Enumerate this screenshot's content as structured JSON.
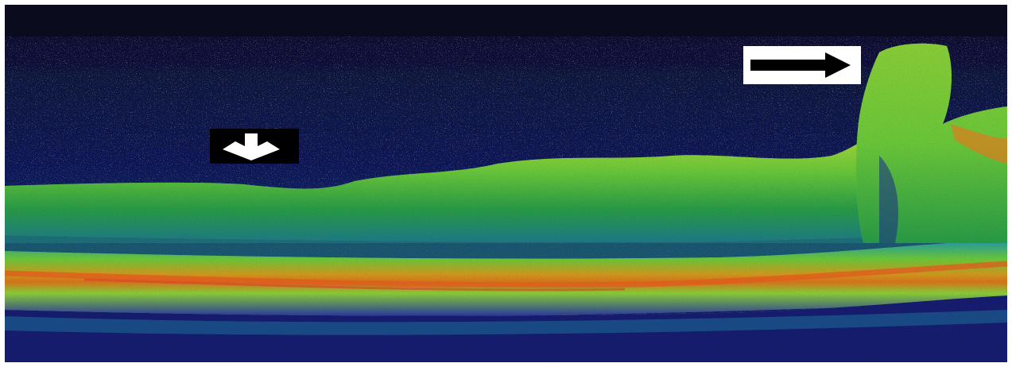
{
  "image": {
    "kind": "OCT retinal cross-section scan (false-color)",
    "colors": {
      "background_dark": "#0b1035",
      "deep_blue": "#141c6e",
      "mid_blue": "#2a3aa8",
      "cyan": "#1f9fb0",
      "green": "#3ebd3c",
      "yellow_green": "#b7e23a",
      "orange": "#e07a1c",
      "red": "#d0402a",
      "label_box": "#ffffff",
      "label_box_dark": "#000000"
    },
    "annotations": [
      {
        "name": "down-arrow",
        "direction": "down",
        "style": "white arrow on black box"
      },
      {
        "name": "right-arrow",
        "direction": "right",
        "style": "black arrow on white box"
      }
    ]
  }
}
